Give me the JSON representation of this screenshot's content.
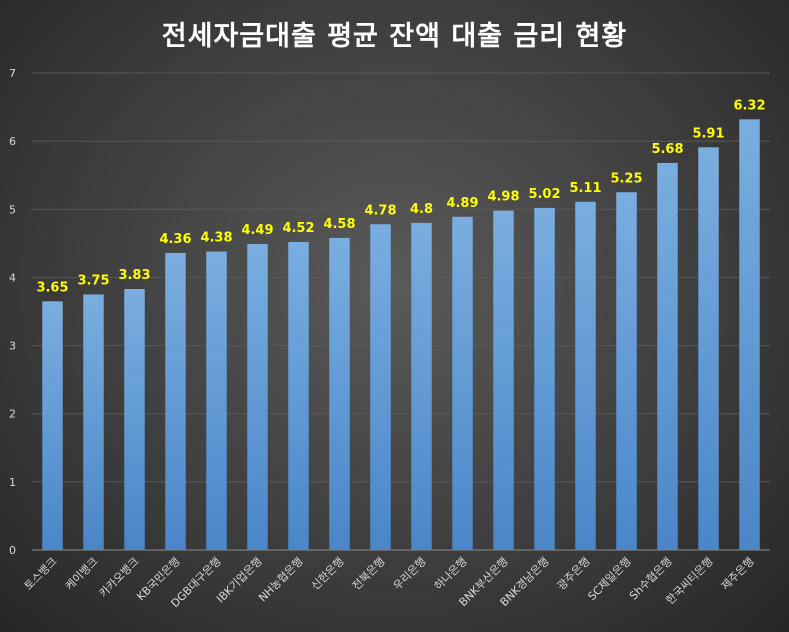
{
  "chart_data": {
    "type": "bar",
    "title": "전세자금대출 평균 잔액 대출 금리 현황",
    "xlabel": "",
    "ylabel": "",
    "ylim": [
      0,
      7
    ],
    "yticks": [
      0,
      1,
      2,
      3,
      4,
      5,
      6,
      7
    ],
    "grid": true,
    "legend": "none",
    "categories": [
      "토스뱅크",
      "케이뱅크",
      "카카오뱅크",
      "KB국민은행",
      "DGB대구은행",
      "IBK기업은행",
      "NH농협은행",
      "신한은행",
      "전북은행",
      "우리은행",
      "하나은행",
      "BNK부산은행",
      "BNK경남은행",
      "광주은행",
      "SC제일은행",
      "Sh수협은행",
      "한국씨티은행",
      "제주은행"
    ],
    "values": [
      3.65,
      3.75,
      3.83,
      4.36,
      4.38,
      4.49,
      4.52,
      4.58,
      4.78,
      4.8,
      4.89,
      4.98,
      5.02,
      5.11,
      5.25,
      5.68,
      5.91,
      6.32
    ],
    "colors": {
      "bar": "#5b9bd5",
      "data_label": "#ffff00",
      "axis_text": "#d9d9d9",
      "title": "#ffffff"
    }
  }
}
